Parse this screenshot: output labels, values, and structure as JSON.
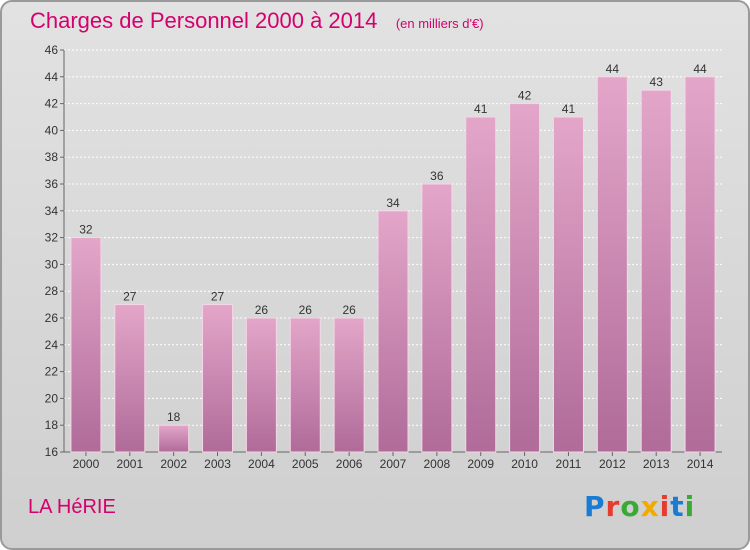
{
  "header": {
    "title": "Charges de Personnel 2000 à 2014",
    "unit_note": "(en milliers d'€)"
  },
  "footer": {
    "commune_name": "LA HéRIE",
    "logo_text": "Proxiti",
    "logo_colors": [
      "#1a7bd4",
      "#e63b2e",
      "#3aa935",
      "#f2a900",
      "#e63b2e",
      "#1a7bd4",
      "#3aa935"
    ]
  },
  "colors": {
    "title": "#d5006d",
    "bar_top": "#e3a6c9",
    "bar_bottom": "#b06b99",
    "bar_edge": "#f4d6e6"
  },
  "chart_data": {
    "type": "bar",
    "title": "Charges de Personnel 2000 à 2014",
    "subtitle": "(en milliers d'€)",
    "xlabel": "",
    "ylabel": "",
    "categories": [
      "2000",
      "2001",
      "2002",
      "2003",
      "2004",
      "2005",
      "2006",
      "2007",
      "2008",
      "2009",
      "2010",
      "2011",
      "2012",
      "2013",
      "2014"
    ],
    "values": [
      32,
      27,
      18,
      27,
      26,
      26,
      26,
      34,
      36,
      41,
      42,
      41,
      44,
      43,
      44
    ],
    "ylim": [
      16,
      46
    ],
    "yticks": [
      16,
      18,
      20,
      22,
      24,
      26,
      28,
      30,
      32,
      34,
      36,
      38,
      40,
      42,
      44,
      46
    ],
    "grid": true,
    "legend": "none"
  }
}
